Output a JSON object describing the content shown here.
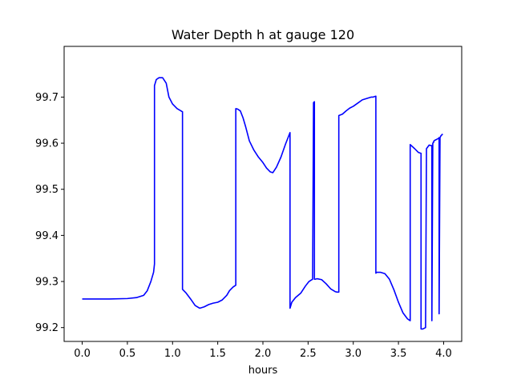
{
  "chart_data": {
    "type": "line",
    "title": "Water Depth h at gauge 120",
    "xlabel": "hours",
    "ylabel": "",
    "xlim": [
      -0.2,
      4.2
    ],
    "ylim": [
      99.17,
      99.81
    ],
    "xticks": [
      0.0,
      0.5,
      1.0,
      1.5,
      2.0,
      2.5,
      3.0,
      3.5,
      4.0
    ],
    "xtick_labels": [
      "0.0",
      "0.5",
      "1.0",
      "1.5",
      "2.0",
      "2.5",
      "3.0",
      "3.5",
      "4.0"
    ],
    "yticks": [
      99.2,
      99.3,
      99.4,
      99.5,
      99.6,
      99.7
    ],
    "ytick_labels": [
      "99.2",
      "99.3",
      "99.4",
      "99.5",
      "99.6",
      "99.7"
    ],
    "grid": false,
    "series": [
      {
        "color": "#0000ff",
        "x": [
          0.0,
          0.3,
          0.5,
          0.6,
          0.68,
          0.72,
          0.76,
          0.79,
          0.8,
          0.8,
          0.82,
          0.85,
          0.89,
          0.93,
          0.96,
          1.0,
          1.05,
          1.11,
          1.11,
          1.15,
          1.2,
          1.25,
          1.3,
          1.35,
          1.4,
          1.45,
          1.5,
          1.55,
          1.6,
          1.63,
          1.67,
          1.7,
          1.7,
          1.72,
          1.75,
          1.78,
          1.81,
          1.85,
          1.9,
          1.95,
          2.0,
          2.04,
          2.08,
          2.11,
          2.15,
          2.2,
          2.25,
          2.3,
          2.3,
          2.32,
          2.36,
          2.42,
          2.47,
          2.51,
          2.55,
          2.56,
          2.57,
          2.57,
          2.58,
          2.6,
          2.65,
          2.7,
          2.75,
          2.8,
          2.82,
          2.84,
          2.84,
          2.88,
          2.92,
          2.96,
          3.0,
          3.05,
          3.1,
          3.15,
          3.2,
          3.22,
          3.25,
          3.25,
          3.26,
          3.3,
          3.35,
          3.4,
          3.45,
          3.5,
          3.55,
          3.6,
          3.63,
          3.63,
          3.68,
          3.72,
          3.75,
          3.75,
          3.77,
          3.8,
          3.81,
          3.81,
          3.84,
          3.87,
          3.87,
          3.87,
          3.88,
          3.89,
          3.89,
          3.9,
          3.94,
          3.95,
          3.95,
          3.96,
          3.97,
          3.99
        ],
        "y": [
          99.262,
          99.262,
          99.263,
          99.265,
          99.27,
          99.28,
          99.3,
          99.32,
          99.338,
          99.725,
          99.738,
          99.742,
          99.742,
          99.73,
          99.7,
          99.685,
          99.675,
          99.668,
          99.283,
          99.275,
          99.262,
          99.248,
          99.242,
          99.245,
          99.25,
          99.253,
          99.255,
          99.26,
          99.27,
          99.28,
          99.288,
          99.292,
          99.675,
          99.674,
          99.67,
          99.655,
          99.635,
          99.605,
          99.585,
          99.57,
          99.558,
          99.546,
          99.538,
          99.536,
          99.548,
          99.57,
          99.598,
          99.623,
          99.242,
          99.255,
          99.265,
          99.275,
          99.29,
          99.3,
          99.305,
          99.688,
          99.69,
          99.305,
          99.305,
          99.306,
          99.304,
          99.295,
          99.284,
          99.278,
          99.277,
          99.277,
          99.66,
          99.663,
          99.67,
          99.676,
          99.68,
          99.687,
          99.694,
          99.697,
          99.7,
          99.7,
          99.702,
          99.318,
          99.32,
          99.32,
          99.317,
          99.305,
          99.282,
          99.255,
          99.232,
          99.219,
          99.215,
          99.597,
          99.588,
          99.58,
          99.578,
          99.197,
          99.197,
          99.2,
          99.585,
          99.588,
          99.596,
          99.594,
          99.595,
          99.215,
          99.6,
          99.602,
          99.604,
          99.606,
          99.61,
          99.612,
          99.23,
          99.612,
          99.616,
          99.62
        ]
      }
    ]
  }
}
